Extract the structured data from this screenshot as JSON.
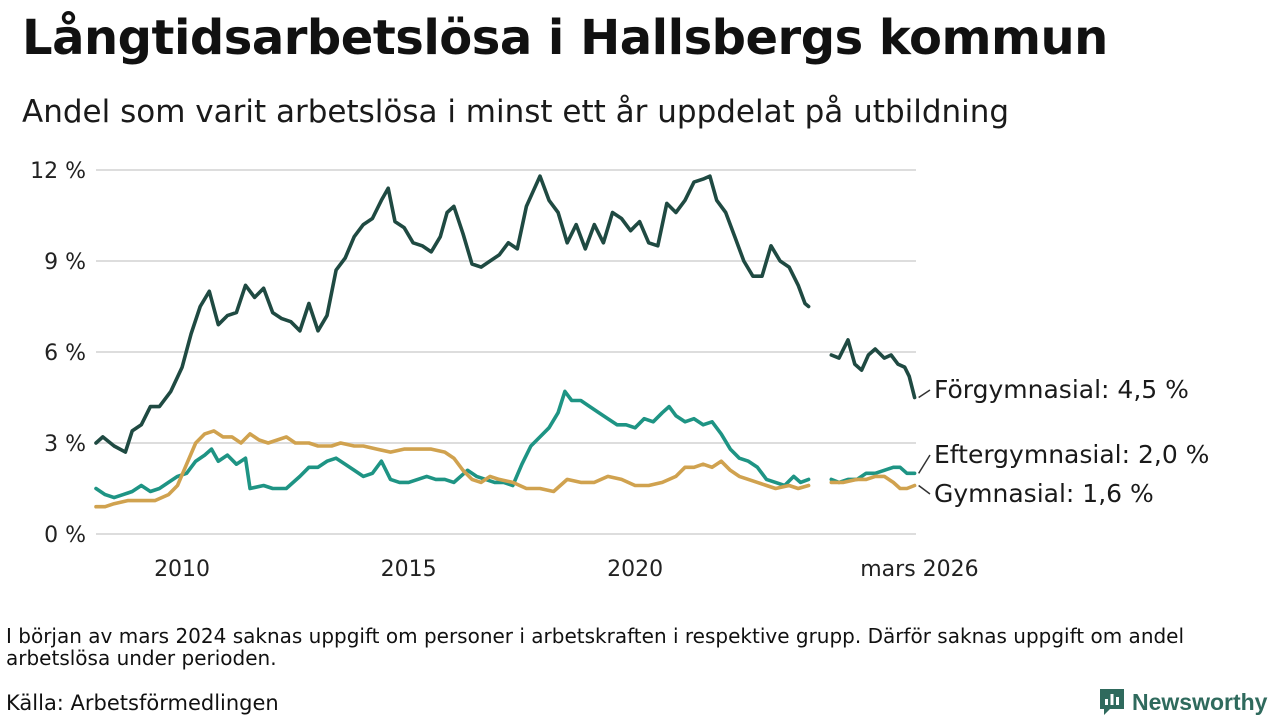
{
  "header": {
    "title": "Långtidsarbetslösa i Hallsbergs kommun",
    "subtitle": "Andel som varit arbetslösa i minst ett år uppdelat på utbildning"
  },
  "footer": {
    "note": "I början av mars 2024 saknas uppgift om personer i arbetskraften i respektive grupp. Därför saknas uppgift om andel arbetslösa under perioden.",
    "source": "Källa: Arbetsförmedlingen",
    "brand": "Newsworthy"
  },
  "colors": {
    "forgymnasial": "#1f4a42",
    "eftergymnasial": "#1e9484",
    "gymnasial": "#d0a24f",
    "grid": "#dddddd",
    "brand": "#2f6a5d"
  },
  "icons": {
    "brand_logo": "chart-bubble-icon"
  },
  "chart_data": {
    "type": "line",
    "title": "Långtidsarbetslösa i Hallsbergs kommun",
    "subtitle": "Andel som varit arbetslösa i minst ett år uppdelat på utbildning",
    "xlabel": "",
    "ylabel": "",
    "xlim": [
      2008.1,
      2026.2
    ],
    "ylim": [
      0,
      12
    ],
    "y_ticks": [
      0,
      3,
      6,
      9,
      12
    ],
    "y_tick_labels": [
      "0 %",
      "3 %",
      "6 %",
      "9 %",
      "12 %"
    ],
    "x_ticks": [
      2010,
      2015,
      2020,
      2026.17
    ],
    "x_tick_labels": [
      "2010",
      "2015",
      "2020",
      "mars 2026"
    ],
    "grid": true,
    "legend": "end-of-line labels",
    "gap": [
      2023.83,
      2024.33
    ],
    "series": [
      {
        "name": "Förgymnasial",
        "label": "Förgymnasial: 4,5 %",
        "color_key": "forgymnasial",
        "points": [
          [
            2008.1,
            3.0
          ],
          [
            2008.25,
            3.2
          ],
          [
            2008.5,
            2.9
          ],
          [
            2008.75,
            2.7
          ],
          [
            2008.9,
            3.4
          ],
          [
            2009.1,
            3.6
          ],
          [
            2009.3,
            4.2
          ],
          [
            2009.5,
            4.2
          ],
          [
            2009.75,
            4.7
          ],
          [
            2010.0,
            5.5
          ],
          [
            2010.2,
            6.6
          ],
          [
            2010.4,
            7.5
          ],
          [
            2010.6,
            8.0
          ],
          [
            2010.8,
            6.9
          ],
          [
            2011.0,
            7.2
          ],
          [
            2011.2,
            7.3
          ],
          [
            2011.4,
            8.2
          ],
          [
            2011.6,
            7.8
          ],
          [
            2011.8,
            8.1
          ],
          [
            2012.0,
            7.3
          ],
          [
            2012.2,
            7.1
          ],
          [
            2012.4,
            7.0
          ],
          [
            2012.6,
            6.7
          ],
          [
            2012.8,
            7.6
          ],
          [
            2013.0,
            6.7
          ],
          [
            2013.2,
            7.2
          ],
          [
            2013.4,
            8.7
          ],
          [
            2013.6,
            9.1
          ],
          [
            2013.8,
            9.8
          ],
          [
            2014.0,
            10.2
          ],
          [
            2014.2,
            10.4
          ],
          [
            2014.4,
            11.0
          ],
          [
            2014.55,
            11.4
          ],
          [
            2014.7,
            10.3
          ],
          [
            2014.9,
            10.1
          ],
          [
            2015.1,
            9.6
          ],
          [
            2015.3,
            9.5
          ],
          [
            2015.5,
            9.3
          ],
          [
            2015.7,
            9.8
          ],
          [
            2015.85,
            10.6
          ],
          [
            2016.0,
            10.8
          ],
          [
            2016.2,
            9.9
          ],
          [
            2016.4,
            8.9
          ],
          [
            2016.6,
            8.8
          ],
          [
            2016.8,
            9.0
          ],
          [
            2017.0,
            9.2
          ],
          [
            2017.2,
            9.6
          ],
          [
            2017.4,
            9.4
          ],
          [
            2017.6,
            10.8
          ],
          [
            2017.75,
            11.3
          ],
          [
            2017.9,
            11.8
          ],
          [
            2018.1,
            11.0
          ],
          [
            2018.3,
            10.6
          ],
          [
            2018.5,
            9.6
          ],
          [
            2018.7,
            10.2
          ],
          [
            2018.9,
            9.4
          ],
          [
            2019.1,
            10.2
          ],
          [
            2019.3,
            9.6
          ],
          [
            2019.5,
            10.6
          ],
          [
            2019.7,
            10.4
          ],
          [
            2019.9,
            10.0
          ],
          [
            2020.1,
            10.3
          ],
          [
            2020.3,
            9.6
          ],
          [
            2020.5,
            9.5
          ],
          [
            2020.7,
            10.9
          ],
          [
            2020.9,
            10.6
          ],
          [
            2021.1,
            11.0
          ],
          [
            2021.3,
            11.6
          ],
          [
            2021.5,
            11.7
          ],
          [
            2021.65,
            11.8
          ],
          [
            2021.8,
            11.0
          ],
          [
            2022.0,
            10.6
          ],
          [
            2022.2,
            9.8
          ],
          [
            2022.4,
            9.0
          ],
          [
            2022.6,
            8.5
          ],
          [
            2022.8,
            8.5
          ],
          [
            2023.0,
            9.5
          ],
          [
            2023.2,
            9.0
          ],
          [
            2023.4,
            8.8
          ],
          [
            2023.6,
            8.2
          ],
          [
            2023.75,
            7.6
          ],
          [
            2023.83,
            7.5
          ],
          null,
          [
            2024.33,
            5.9
          ],
          [
            2024.5,
            5.8
          ],
          [
            2024.7,
            6.4
          ],
          [
            2024.85,
            5.6
          ],
          [
            2025.0,
            5.4
          ],
          [
            2025.15,
            5.9
          ],
          [
            2025.3,
            6.1
          ],
          [
            2025.5,
            5.8
          ],
          [
            2025.65,
            5.9
          ],
          [
            2025.8,
            5.6
          ],
          [
            2025.95,
            5.5
          ],
          [
            2026.05,
            5.2
          ],
          [
            2026.17,
            4.5
          ]
        ]
      },
      {
        "name": "Eftergymnasial",
        "label": "Eftergymnasial: 2,0 %",
        "color_key": "eftergymnasial",
        "points": [
          [
            2008.1,
            1.5
          ],
          [
            2008.3,
            1.3
          ],
          [
            2008.5,
            1.2
          ],
          [
            2008.7,
            1.3
          ],
          [
            2008.9,
            1.4
          ],
          [
            2009.1,
            1.6
          ],
          [
            2009.3,
            1.4
          ],
          [
            2009.5,
            1.5
          ],
          [
            2009.7,
            1.7
          ],
          [
            2009.9,
            1.9
          ],
          [
            2010.1,
            2.0
          ],
          [
            2010.3,
            2.4
          ],
          [
            2010.5,
            2.6
          ],
          [
            2010.65,
            2.8
          ],
          [
            2010.8,
            2.4
          ],
          [
            2011.0,
            2.6
          ],
          [
            2011.2,
            2.3
          ],
          [
            2011.4,
            2.5
          ],
          [
            2011.5,
            1.5
          ],
          [
            2011.8,
            1.6
          ],
          [
            2012.0,
            1.5
          ],
          [
            2012.3,
            1.5
          ],
          [
            2012.6,
            1.9
          ],
          [
            2012.8,
            2.2
          ],
          [
            2013.0,
            2.2
          ],
          [
            2013.2,
            2.4
          ],
          [
            2013.4,
            2.5
          ],
          [
            2013.6,
            2.3
          ],
          [
            2013.8,
            2.1
          ],
          [
            2014.0,
            1.9
          ],
          [
            2014.2,
            2.0
          ],
          [
            2014.4,
            2.4
          ],
          [
            2014.6,
            1.8
          ],
          [
            2014.8,
            1.7
          ],
          [
            2015.0,
            1.7
          ],
          [
            2015.2,
            1.8
          ],
          [
            2015.4,
            1.9
          ],
          [
            2015.6,
            1.8
          ],
          [
            2015.8,
            1.8
          ],
          [
            2016.0,
            1.7
          ],
          [
            2016.3,
            2.1
          ],
          [
            2016.5,
            1.9
          ],
          [
            2016.7,
            1.8
          ],
          [
            2016.9,
            1.7
          ],
          [
            2017.1,
            1.7
          ],
          [
            2017.3,
            1.6
          ],
          [
            2017.5,
            2.3
          ],
          [
            2017.7,
            2.9
          ],
          [
            2017.9,
            3.2
          ],
          [
            2018.1,
            3.5
          ],
          [
            2018.3,
            4.0
          ],
          [
            2018.45,
            4.7
          ],
          [
            2018.6,
            4.4
          ],
          [
            2018.8,
            4.4
          ],
          [
            2019.0,
            4.2
          ],
          [
            2019.2,
            4.0
          ],
          [
            2019.4,
            3.8
          ],
          [
            2019.6,
            3.6
          ],
          [
            2019.8,
            3.6
          ],
          [
            2020.0,
            3.5
          ],
          [
            2020.2,
            3.8
          ],
          [
            2020.4,
            3.7
          ],
          [
            2020.6,
            4.0
          ],
          [
            2020.75,
            4.2
          ],
          [
            2020.9,
            3.9
          ],
          [
            2021.1,
            3.7
          ],
          [
            2021.3,
            3.8
          ],
          [
            2021.5,
            3.6
          ],
          [
            2021.7,
            3.7
          ],
          [
            2021.9,
            3.3
          ],
          [
            2022.1,
            2.8
          ],
          [
            2022.3,
            2.5
          ],
          [
            2022.5,
            2.4
          ],
          [
            2022.7,
            2.2
          ],
          [
            2022.9,
            1.8
          ],
          [
            2023.1,
            1.7
          ],
          [
            2023.3,
            1.6
          ],
          [
            2023.5,
            1.9
          ],
          [
            2023.65,
            1.7
          ],
          [
            2023.83,
            1.8
          ],
          null,
          [
            2024.33,
            1.8
          ],
          [
            2024.5,
            1.7
          ],
          [
            2024.7,
            1.8
          ],
          [
            2024.9,
            1.8
          ],
          [
            2025.1,
            2.0
          ],
          [
            2025.3,
            2.0
          ],
          [
            2025.5,
            2.1
          ],
          [
            2025.7,
            2.2
          ],
          [
            2025.85,
            2.2
          ],
          [
            2026.0,
            2.0
          ],
          [
            2026.17,
            2.0
          ]
        ]
      },
      {
        "name": "Gymnasial",
        "label": "Gymnasial: 1,6 %",
        "color_key": "gymnasial",
        "points": [
          [
            2008.1,
            0.9
          ],
          [
            2008.3,
            0.9
          ],
          [
            2008.5,
            1.0
          ],
          [
            2008.8,
            1.1
          ],
          [
            2009.1,
            1.1
          ],
          [
            2009.4,
            1.1
          ],
          [
            2009.7,
            1.3
          ],
          [
            2009.9,
            1.6
          ],
          [
            2010.1,
            2.3
          ],
          [
            2010.3,
            3.0
          ],
          [
            2010.5,
            3.3
          ],
          [
            2010.7,
            3.4
          ],
          [
            2010.9,
            3.2
          ],
          [
            2011.1,
            3.2
          ],
          [
            2011.3,
            3.0
          ],
          [
            2011.5,
            3.3
          ],
          [
            2011.7,
            3.1
          ],
          [
            2011.9,
            3.0
          ],
          [
            2012.1,
            3.1
          ],
          [
            2012.3,
            3.2
          ],
          [
            2012.5,
            3.0
          ],
          [
            2012.8,
            3.0
          ],
          [
            2013.0,
            2.9
          ],
          [
            2013.3,
            2.9
          ],
          [
            2013.5,
            3.0
          ],
          [
            2013.8,
            2.9
          ],
          [
            2014.0,
            2.9
          ],
          [
            2014.3,
            2.8
          ],
          [
            2014.6,
            2.7
          ],
          [
            2014.9,
            2.8
          ],
          [
            2015.2,
            2.8
          ],
          [
            2015.5,
            2.8
          ],
          [
            2015.8,
            2.7
          ],
          [
            2016.0,
            2.5
          ],
          [
            2016.2,
            2.1
          ],
          [
            2016.4,
            1.8
          ],
          [
            2016.6,
            1.7
          ],
          [
            2016.8,
            1.9
          ],
          [
            2017.0,
            1.8
          ],
          [
            2017.3,
            1.7
          ],
          [
            2017.6,
            1.5
          ],
          [
            2017.9,
            1.5
          ],
          [
            2018.2,
            1.4
          ],
          [
            2018.5,
            1.8
          ],
          [
            2018.8,
            1.7
          ],
          [
            2019.1,
            1.7
          ],
          [
            2019.4,
            1.9
          ],
          [
            2019.7,
            1.8
          ],
          [
            2020.0,
            1.6
          ],
          [
            2020.3,
            1.6
          ],
          [
            2020.6,
            1.7
          ],
          [
            2020.9,
            1.9
          ],
          [
            2021.1,
            2.2
          ],
          [
            2021.3,
            2.2
          ],
          [
            2021.5,
            2.3
          ],
          [
            2021.7,
            2.2
          ],
          [
            2021.9,
            2.4
          ],
          [
            2022.1,
            2.1
          ],
          [
            2022.3,
            1.9
          ],
          [
            2022.5,
            1.8
          ],
          [
            2022.7,
            1.7
          ],
          [
            2022.9,
            1.6
          ],
          [
            2023.1,
            1.5
          ],
          [
            2023.4,
            1.6
          ],
          [
            2023.6,
            1.5
          ],
          [
            2023.83,
            1.6
          ],
          null,
          [
            2024.33,
            1.7
          ],
          [
            2024.6,
            1.7
          ],
          [
            2024.9,
            1.8
          ],
          [
            2025.1,
            1.8
          ],
          [
            2025.3,
            1.9
          ],
          [
            2025.5,
            1.9
          ],
          [
            2025.7,
            1.7
          ],
          [
            2025.85,
            1.5
          ],
          [
            2026.0,
            1.5
          ],
          [
            2026.17,
            1.6
          ]
        ]
      }
    ]
  }
}
